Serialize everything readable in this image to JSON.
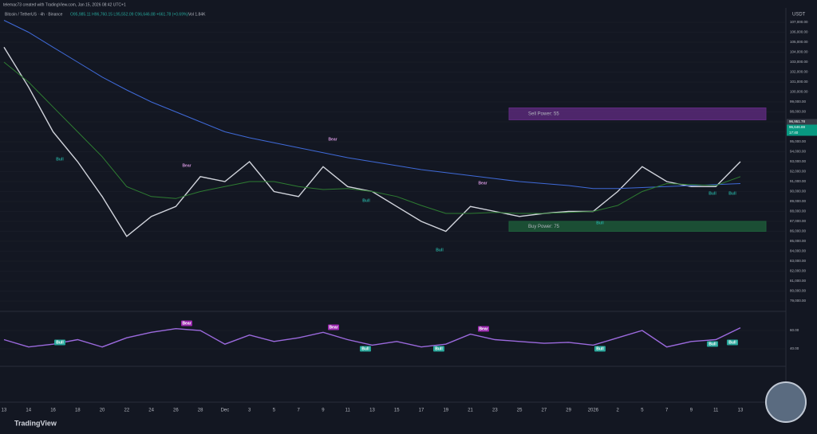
{
  "header": "telemac73 created with TradingView.com, Jan 15, 2026 08:42 UTC+1",
  "symbol": "Bitcoin / TetherUS · 4h · Binance",
  "ohlc": "O95,985.11 H96,760.15 L95,552.09 C96,646.88 +661.78 (+0.69%)",
  "volume_label": "Vol 1.84K",
  "currency": "USDT",
  "price_labels": [
    "96,951.78",
    "96,646.88",
    "17:40"
  ],
  "signals_main": [
    "Bull",
    "Bear",
    "Bear",
    "Bull",
    "Bear",
    "Bull",
    "Bull",
    "Bull",
    "Bull"
  ],
  "signals_osc": [
    "Bull",
    "Bear",
    "Bear",
    "Bull",
    "Bear",
    "Bull",
    "Bull",
    "Bull",
    "Bull"
  ],
  "brand": "TradingView",
  "chart_data": [
    {
      "type": "line",
      "categories": [
        "13",
        "14",
        "16",
        "18",
        "20",
        "22",
        "24",
        "26",
        "28",
        "Dec",
        "3",
        "5",
        "7",
        "9",
        "11",
        "13",
        "15",
        "17",
        "19",
        "21",
        "23",
        "25",
        "27",
        "29",
        "2026",
        "2",
        "5",
        "7",
        "9",
        "11",
        "13"
      ],
      "series": [
        {
          "color": "#d1d4dc",
          "values": [
            104500,
            100500,
            96000,
            93000,
            89500,
            85500,
            87500,
            88500,
            91500,
            91000,
            93000,
            90000,
            89500,
            92500,
            90500,
            90000,
            88500,
            87000,
            86000,
            88500,
            88000,
            87500,
            87800,
            88000,
            88000,
            90000,
            92500,
            91000,
            90500,
            90500,
            93000
          ]
        },
        {
          "color": "#3f6ad8",
          "values": [
            107200,
            106000,
            104500,
            103000,
            101500,
            100200,
            99000,
            98000,
            97000,
            96000,
            95400,
            94900,
            94400,
            93900,
            93400,
            93000,
            92600,
            92200,
            91900,
            91600,
            91300,
            91000,
            90800,
            90600,
            90300,
            90300,
            90400,
            90500,
            90600,
            90700,
            90800
          ]
        },
        {
          "color": "#2e7d32",
          "values": [
            103000,
            101000,
            98500,
            96000,
            93500,
            90500,
            89500,
            89300,
            90000,
            90500,
            91000,
            91000,
            90500,
            90200,
            90300,
            90000,
            89500,
            88600,
            87800,
            87800,
            87900,
            87800,
            87800,
            87900,
            88000,
            88600,
            90000,
            90800,
            90700,
            90600,
            91500
          ]
        }
      ],
      "zones": [
        {
          "label": "Sell Power: 55",
          "color": "#5e2a7e",
          "range": [
            97200,
            98400
          ]
        },
        {
          "label": "Buy Power: 75",
          "color": "#1e5c3a",
          "range": [
            86000,
            87000
          ]
        }
      ],
      "ylim": [
        78200,
        108280
      ],
      "yticks": [
        {
          "value": 107000,
          "label": "107,000.00"
        },
        {
          "value": 106000,
          "label": "106,000.00"
        },
        {
          "value": 105000,
          "label": "105,000.00"
        },
        {
          "value": 104000,
          "label": "104,000.00"
        },
        {
          "value": 103000,
          "label": "103,000.00"
        },
        {
          "value": 102000,
          "label": "102,000.00"
        },
        {
          "value": 101000,
          "label": "101,000.00"
        },
        {
          "value": 100000,
          "label": "100,000.00"
        },
        {
          "value": 99000,
          "label": "99,000.00"
        },
        {
          "value": 98000,
          "label": "98,000.00"
        },
        {
          "value": 97000,
          "label": "97,000.00"
        },
        {
          "value": 96000,
          "label": "96,000.00"
        },
        {
          "value": 95000,
          "label": "95,000.00"
        },
        {
          "value": 94000,
          "label": "94,000.00"
        },
        {
          "value": 93000,
          "label": "93,000.00"
        },
        {
          "value": 92000,
          "label": "92,000.00"
        },
        {
          "value": 91000,
          "label": "91,000.00"
        },
        {
          "value": 90000,
          "label": "90,000.00"
        },
        {
          "value": 89000,
          "label": "89,000.00"
        },
        {
          "value": 88000,
          "label": "88,000.00"
        },
        {
          "value": 87000,
          "label": "87,000.00"
        },
        {
          "value": 86000,
          "label": "86,000.00"
        },
        {
          "value": 85000,
          "label": "85,000.00"
        },
        {
          "value": 84000,
          "label": "84,000.00"
        },
        {
          "value": 83000,
          "label": "83,000.00"
        },
        {
          "value": 82000,
          "label": "82,000.00"
        },
        {
          "value": 81000,
          "label": "81,000.00"
        },
        {
          "value": 80000,
          "label": "80,000.00"
        },
        {
          "value": 79000,
          "label": "79,000.00"
        }
      ]
    },
    {
      "type": "line",
      "series": [
        {
          "color": "#9c6ade",
          "values": [
            50,
            42,
            45,
            50,
            42,
            52,
            58,
            62,
            60,
            45,
            55,
            48,
            52,
            58,
            50,
            44,
            48,
            42,
            45,
            56,
            50,
            48,
            46,
            47,
            44,
            52,
            60,
            42,
            48,
            50,
            63
          ]
        }
      ],
      "ylim": [
        25.2,
        77.4
      ],
      "yticks": [
        {
          "value": 60,
          "label": "60.00"
        },
        {
          "value": 40,
          "label": "40.00"
        }
      ]
    }
  ]
}
